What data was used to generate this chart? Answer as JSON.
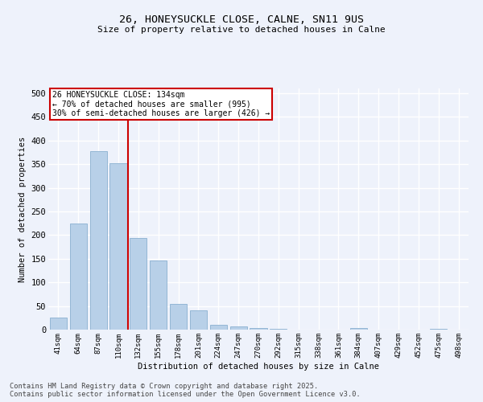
{
  "title1": "26, HONEYSUCKLE CLOSE, CALNE, SN11 9US",
  "title2": "Size of property relative to detached houses in Calne",
  "xlabel": "Distribution of detached houses by size in Calne",
  "ylabel": "Number of detached properties",
  "categories": [
    "41sqm",
    "64sqm",
    "87sqm",
    "110sqm",
    "132sqm",
    "155sqm",
    "178sqm",
    "201sqm",
    "224sqm",
    "247sqm",
    "270sqm",
    "292sqm",
    "315sqm",
    "338sqm",
    "361sqm",
    "384sqm",
    "407sqm",
    "429sqm",
    "452sqm",
    "475sqm",
    "498sqm"
  ],
  "values": [
    25,
    225,
    378,
    352,
    193,
    147,
    55,
    40,
    11,
    7,
    4,
    2,
    0,
    0,
    0,
    3,
    0,
    0,
    0,
    2,
    0
  ],
  "bar_color": "#b8d0e8",
  "bar_edgecolor": "#8ab0d0",
  "annotation_text": "26 HONEYSUCKLE CLOSE: 134sqm\n← 70% of detached houses are smaller (995)\n30% of semi-detached houses are larger (426) →",
  "annotation_box_color": "#ffffff",
  "annotation_box_edgecolor": "#cc0000",
  "vline_color": "#cc0000",
  "ylim": [
    0,
    510
  ],
  "yticks": [
    0,
    50,
    100,
    150,
    200,
    250,
    300,
    350,
    400,
    450,
    500
  ],
  "bg_color": "#eef2fb",
  "grid_color": "#ffffff",
  "footer1": "Contains HM Land Registry data © Crown copyright and database right 2025.",
  "footer2": "Contains public sector information licensed under the Open Government Licence v3.0."
}
